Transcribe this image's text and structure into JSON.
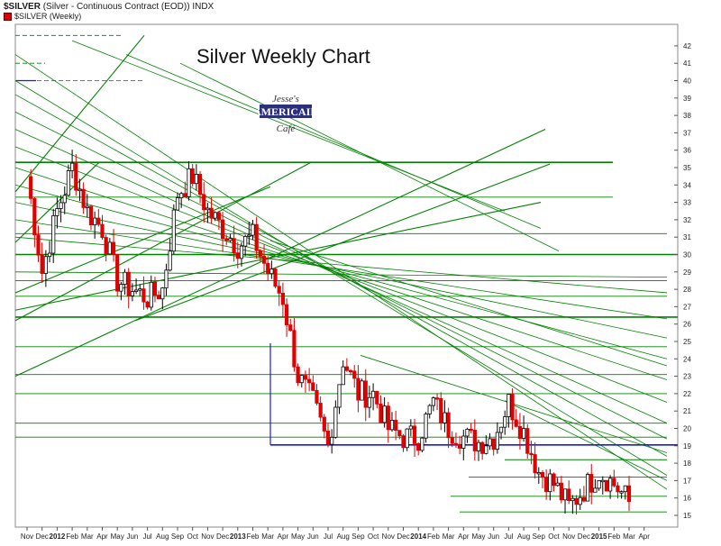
{
  "header": {
    "symbol": "$SILVER",
    "description": "(Silver - Continuous Contract (EOD)) INDX",
    "series_label": "$SILVER (Weekly)"
  },
  "logo_text": [
    "Jesse's",
    "AMERICAIN",
    "Café"
  ],
  "colors": {
    "down_candle": "#e00000",
    "up_candle": "#ffffff",
    "trendline": "#008000",
    "support": "#1a1adc"
  },
  "chart_data": {
    "type": "candlestick",
    "title": "Silver Weekly Chart",
    "timeframe": "Weekly",
    "ylim": [
      14.5,
      43
    ],
    "y_ticks": [
      15,
      16,
      17,
      18,
      19,
      20,
      21,
      22,
      23,
      24,
      25,
      26,
      27,
      28,
      29,
      30,
      31,
      32,
      33,
      34,
      35,
      36,
      37,
      38,
      39,
      40,
      41,
      42
    ],
    "x_ticks": [
      "Nov",
      "Dec",
      "2012",
      "Feb",
      "Mar",
      "Apr",
      "May",
      "Jun",
      "Jul",
      "Aug",
      "Sep",
      "Oct",
      "Nov",
      "Dec",
      "2013",
      "Feb",
      "Mar",
      "Apr",
      "May",
      "Jun",
      "Jul",
      "Aug",
      "Sep",
      "Oct",
      "Nov",
      "Dec",
      "2014",
      "Feb",
      "Mar",
      "Apr",
      "May",
      "Jun",
      "Jul",
      "Aug",
      "Sep",
      "Oct",
      "Nov",
      "Dec",
      "2015",
      "Feb",
      "Mar",
      "Apr"
    ],
    "x_year_ticks": [
      "2012",
      "2013",
      "2014",
      "2015"
    ],
    "weekly_close_path": [
      {
        "month": "Nov 2011",
        "close": 34.5
      },
      {
        "month": "Dec 2011",
        "close": 29.0
      },
      {
        "month": "Jan 2012",
        "close": 32.5
      },
      {
        "month": "Feb 2012",
        "close": 35.0
      },
      {
        "month": "Mar 2012",
        "close": 32.5
      },
      {
        "month": "Apr 2012",
        "close": 31.5
      },
      {
        "month": "May 2012",
        "close": 28.5
      },
      {
        "month": "Jun 2012",
        "close": 28.0
      },
      {
        "month": "Jul 2012",
        "close": 27.5
      },
      {
        "month": "Aug 2012",
        "close": 28.0
      },
      {
        "month": "Sep 2012",
        "close": 33.5
      },
      {
        "month": "Oct 2012",
        "close": 34.5
      },
      {
        "month": "Nov 2012",
        "close": 32.5
      },
      {
        "month": "Dec 2012",
        "close": 31.5
      },
      {
        "month": "Jan 2013",
        "close": 30.5
      },
      {
        "month": "Feb 2013",
        "close": 31.0
      },
      {
        "month": "Mar 2013",
        "close": 29.0
      },
      {
        "month": "Apr 2013",
        "close": 27.5
      },
      {
        "month": "May 2013",
        "close": 23.0
      },
      {
        "month": "Jun 2013",
        "close": 21.5
      },
      {
        "month": "Jul 2013",
        "close": 19.0
      },
      {
        "month": "Aug 2013",
        "close": 24.0
      },
      {
        "month": "Sep 2013",
        "close": 22.0
      },
      {
        "month": "Oct 2013",
        "close": 22.0
      },
      {
        "month": "Nov 2013",
        "close": 20.0
      },
      {
        "month": "Dec 2013",
        "close": 19.5
      },
      {
        "month": "Jan 2014",
        "close": 19.5
      },
      {
        "month": "Feb 2014",
        "close": 21.5
      },
      {
        "month": "Mar 2014",
        "close": 20.0
      },
      {
        "month": "Apr 2014",
        "close": 19.5
      },
      {
        "month": "May 2014",
        "close": 19.2
      },
      {
        "month": "Jun 2014",
        "close": 19.5
      },
      {
        "month": "Jul 2014",
        "close": 21.5
      },
      {
        "month": "Aug 2014",
        "close": 19.8
      },
      {
        "month": "Sep 2014",
        "close": 17.5
      },
      {
        "month": "Oct 2014",
        "close": 16.8
      },
      {
        "month": "Nov 2014",
        "close": 15.5
      },
      {
        "month": "Dec 2014",
        "close": 16.5
      },
      {
        "month": "Jan 2015",
        "close": 17.5
      },
      {
        "month": "Feb 2015",
        "close": 16.8
      },
      {
        "month": "Mar 2015",
        "close": 15.8
      }
    ],
    "horizontal_lines": [
      35.3,
      30.0,
      26.4,
      19.0
    ],
    "grid": true
  }
}
